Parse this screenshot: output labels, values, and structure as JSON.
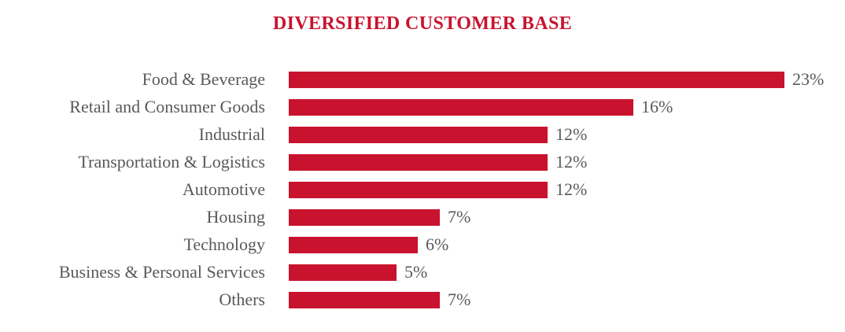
{
  "chart_data": {
    "type": "bar",
    "orientation": "horizontal",
    "title": "DIVERSIFIED CUSTOMER BASE",
    "title_color": "#C9132E",
    "categories": [
      "Food & Beverage",
      "Retail and Consumer Goods",
      "Industrial",
      "Transportation & Logistics",
      "Automotive",
      "Housing",
      "Technology",
      "Business & Personal Services",
      "Others"
    ],
    "values": [
      23,
      16,
      12,
      12,
      12,
      7,
      6,
      5,
      7
    ],
    "data_labels": [
      "23%",
      "16%",
      "12%",
      "12%",
      "12%",
      "7%",
      "6%",
      "5%",
      "7%"
    ],
    "value_suffix": "%",
    "xlabel": "",
    "ylabel": "",
    "xlim": [
      0,
      23
    ],
    "grid": false,
    "legend": false,
    "axis_lines": false,
    "bar_color": "#C9132E",
    "category_label_color": "#595959",
    "value_label_color": "#595959",
    "background_color": "#ffffff"
  }
}
